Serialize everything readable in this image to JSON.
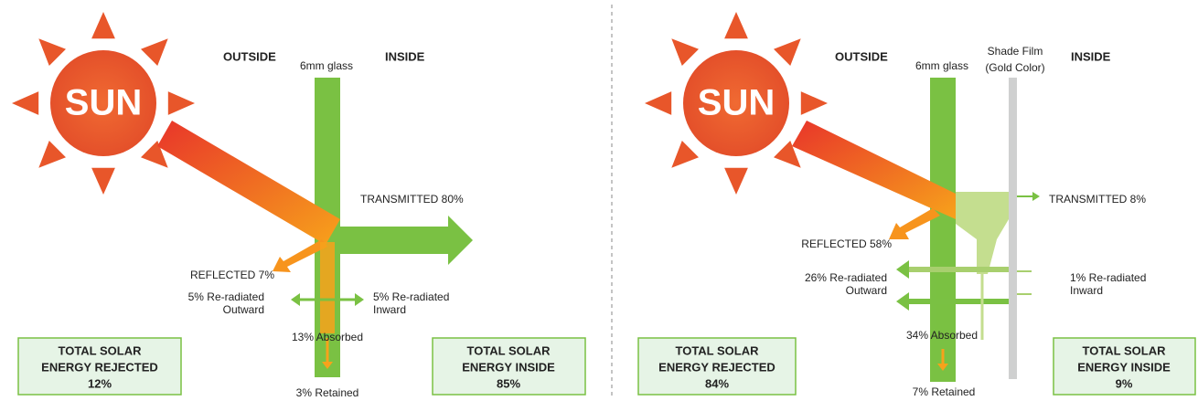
{
  "panels": [
    {
      "sun": "SUN",
      "outside": "OUTSIDE",
      "glass": "6mm glass",
      "inside": "INSIDE",
      "transmitted": "TRANSMITTED 80%",
      "reflected": "REFLECTED 7%",
      "reradiated_outward": [
        "5% Re-radiated",
        "Outward"
      ],
      "reradiated_inward": [
        "5% Re-radiated",
        "Inward"
      ],
      "absorbed": "13% Absorbed",
      "retained": "3% Retained",
      "rejected_box": [
        "TOTAL SOLAR",
        "ENERGY REJECTED",
        "12%"
      ],
      "inside_box": [
        "TOTAL SOLAR",
        "ENERGY INSIDE",
        "85%"
      ]
    },
    {
      "sun": "SUN",
      "outside": "OUTSIDE",
      "glass": "6mm glass",
      "film": [
        "Shade Film",
        "(Gold Color)"
      ],
      "inside": "INSIDE",
      "transmitted": "TRANSMITTED 8%",
      "reflected": "REFLECTED 58%",
      "reradiated_outward": [
        "26% Re-radiated",
        "Outward"
      ],
      "reradiated_inward": [
        "1% Re-radiated",
        "Inward"
      ],
      "absorbed": "34% Absorbed",
      "retained": "7% Retained",
      "rejected_box": [
        "TOTAL SOLAR",
        "ENERGY REJECTED",
        "84%"
      ],
      "inside_box": [
        "TOTAL SOLAR",
        "ENERGY INSIDE",
        "9%"
      ]
    }
  ]
}
